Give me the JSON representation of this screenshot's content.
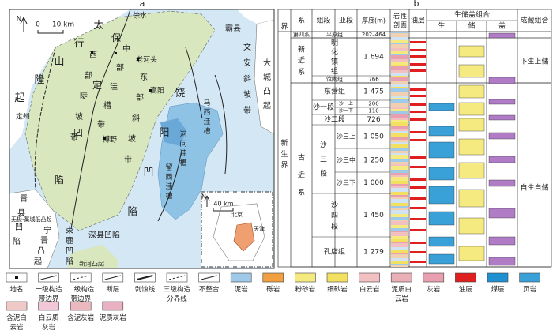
{
  "panel_a": {
    "label": "a",
    "north": "N",
    "scale_zero": "0",
    "scale_label": "10 km",
    "map_labels": [
      "太行山隆起",
      "保定凹陷",
      "西部陡坡带",
      "中部洼槽带",
      "东部斜坡带",
      "老河头",
      "高阳",
      "饶阳凹陷",
      "霸县",
      "文安斜坡带",
      "大城凸起",
      "马西洼槽",
      "河间洼槽",
      "留西洼槽",
      "深县凹陷",
      "束鹿凹陷",
      "宁晋凸起",
      "晋县凹陷",
      "新河凸起",
      "无极-藁城低凸起",
      "徐水",
      "定州",
      "博野"
    ],
    "inset": {
      "north": "N",
      "scale_label": "40 km",
      "labels": [
        "北京",
        "天津"
      ]
    }
  },
  "panel_b": {
    "label": "b",
    "headers": {
      "jie": "界",
      "xi": "系",
      "zuduan": "组段",
      "yaduan": "亚段",
      "thickness": "厚度(m)",
      "lithology": "岩性剖面",
      "oil": "油层",
      "combo": "生储盖组合",
      "sheng": "生",
      "chu": "储",
      "gai": "盖",
      "accum": "成藏组合"
    },
    "jie": "新生界",
    "systems": [
      "第四系",
      "新近系",
      "古近系"
    ],
    "formations": [
      {
        "name": "平原组",
        "thickness": "202–464"
      },
      {
        "name": "明化镇组",
        "thickness": "1 694"
      },
      {
        "name": "馆陶组",
        "thickness": "766"
      },
      {
        "name": "东营组",
        "thickness": "1 475"
      },
      {
        "name": "沙一段",
        "members": [
          {
            "name": "沙一上",
            "thickness": "200"
          },
          {
            "name": "沙一下",
            "thickness": "110"
          }
        ]
      },
      {
        "name": "沙二段",
        "thickness": "726"
      },
      {
        "name": "沙三段",
        "members": [
          {
            "name": "沙三上",
            "thickness": "1 050"
          },
          {
            "name": "沙三中",
            "thickness": "1 250"
          },
          {
            "name": "沙三下",
            "thickness": "1 000"
          }
        ]
      },
      {
        "name": "沙四段",
        "thickness": "1 450"
      },
      {
        "name": "孔店组",
        "thickness": "1 279"
      }
    ],
    "accumulation": [
      "下生上储",
      "自生自储"
    ]
  },
  "legend": [
    "地名",
    "一级构造带边界",
    "二级构造带边界",
    "断层",
    "剥蚀线",
    "三级构造分界线",
    "不整合",
    "泥岩",
    "砾岩",
    "粉砂岩",
    "细砂岩",
    "白云岩",
    "泥质白云岩",
    "灰岩",
    "油层",
    "煤层",
    "页岩",
    "含泥白云岩",
    "白云质灰岩",
    "含泥灰岩",
    "泥质灰岩"
  ]
}
